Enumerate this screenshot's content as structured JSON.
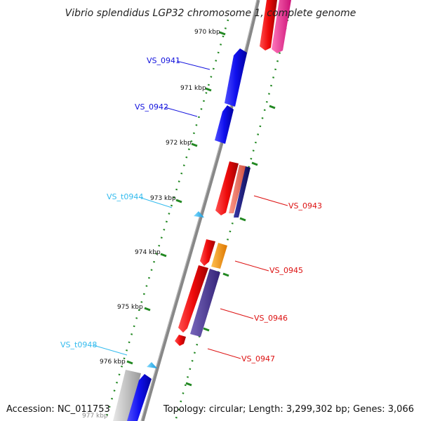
{
  "title": "Vibrio splendidus LGP32 chromosome 1, complete genome",
  "footer": {
    "accession": "Accession: NC_011753",
    "summary": "Topology: circular; Length: 3,299,302 bp; Genes: 3,066"
  },
  "ticks": [
    {
      "label": "970 kbp"
    },
    {
      "label": "971 kbp"
    },
    {
      "label": "972 kbp"
    },
    {
      "label": "973 kbp"
    },
    {
      "label": "974 kbp"
    },
    {
      "label": "975 kbp"
    },
    {
      "label": "976 kbp"
    },
    {
      "label": "977 kbp"
    }
  ],
  "genes": [
    {
      "label": "VS_0941",
      "color": "#1010dd"
    },
    {
      "label": "VS_0942",
      "color": "#1010dd"
    },
    {
      "label": "VS_t0944",
      "color": "#33bbee"
    },
    {
      "label": "VS_0943",
      "color": "#dd1111"
    },
    {
      "label": "VS_0945",
      "color": "#dd1111"
    },
    {
      "label": "VS_0946",
      "color": "#dd1111"
    },
    {
      "label": "VS_0947",
      "color": "#dd1111"
    },
    {
      "label": "VS_t0948",
      "color": "#33bbee"
    }
  ],
  "colors": {
    "backbone": "#888888",
    "gc_dots": "#228822",
    "cds_red": "#ee1111",
    "cds_blue": "#1111ee",
    "trna": "#33bbee",
    "salmon": "#f07060",
    "navy": "#1a1a80",
    "orange": "#ff9900",
    "purple": "#554499",
    "pink": "#ee3399",
    "grey": "#bbbbbb"
  }
}
